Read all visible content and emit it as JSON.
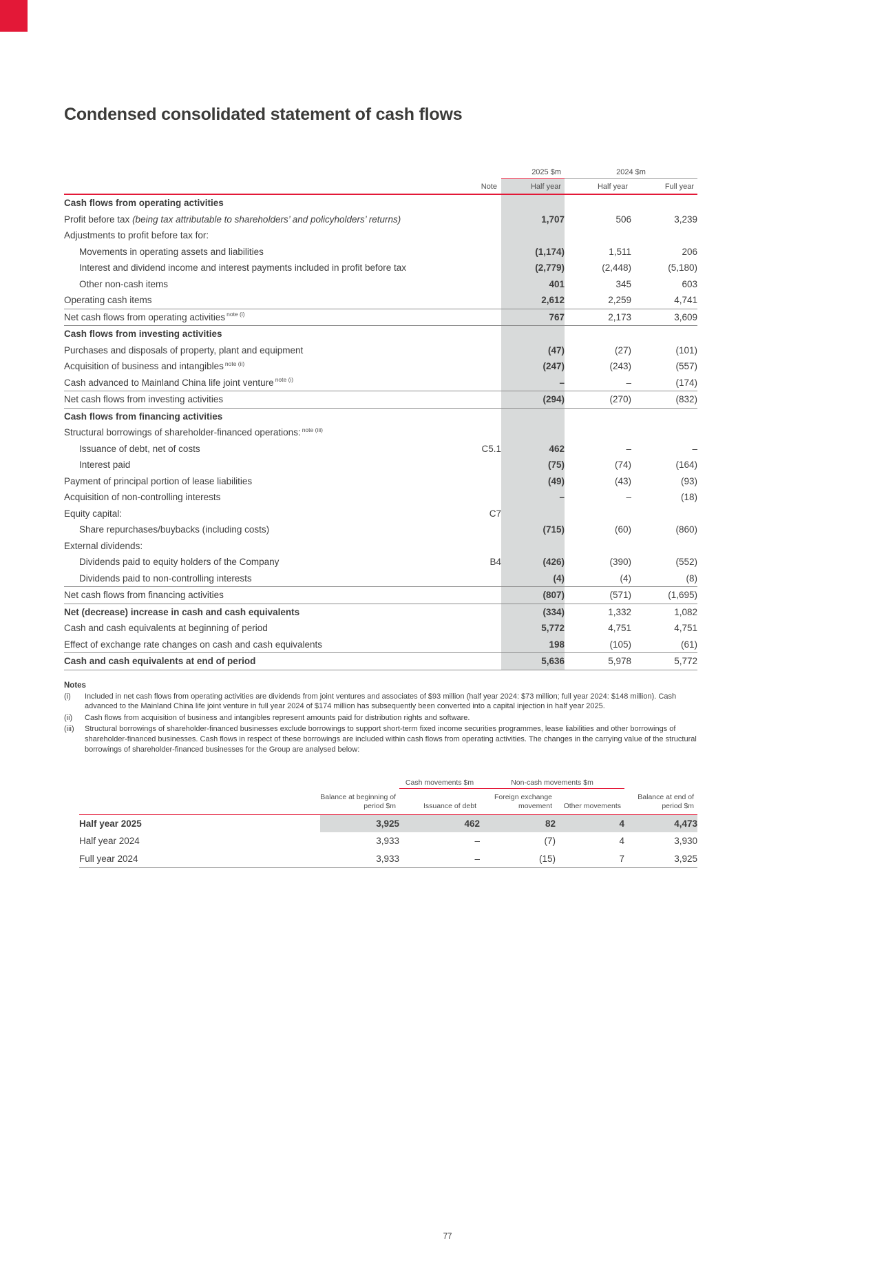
{
  "page": {
    "title": "Condensed consolidated statement of cash flows",
    "page_number": "77",
    "accent_red": "#E31837",
    "highlight_gray": "#D8DADA"
  },
  "cashflow_table": {
    "col_headers": {
      "group_2025": "2025 $m",
      "group_2024": "2024 $m",
      "note": "Note",
      "half_year_2025": "Half year",
      "half_year_2024": "Half year",
      "full_year_2024": "Full year"
    },
    "rows": [
      {
        "label": "Cash flows from operating activities",
        "style": "section"
      },
      {
        "label": "Profit before tax",
        "italic": "(being tax attributable to shareholders’ and policyholders’ returns)",
        "v25": "1,707",
        "v24h": "506",
        "v24f": "3,239"
      },
      {
        "label": "Adjustments to profit before tax for:"
      },
      {
        "label": "Movements in operating assets and liabilities",
        "indent": true,
        "v25": "(1,174)",
        "v24h": "1,511",
        "v24f": "206"
      },
      {
        "label": "Interest and dividend income and interest payments included in profit before tax",
        "indent": true,
        "v25": "(2,779)",
        "v24h": "(2,448)",
        "v24f": "(5,180)"
      },
      {
        "label": "Other non-cash items",
        "indent": true,
        "v25": "401",
        "v24h": "345",
        "v24f": "603"
      },
      {
        "label": "Operating cash items",
        "v25": "2,612",
        "v24h": "2,259",
        "v24f": "4,741"
      },
      {
        "label": "Net cash flows from operating activities",
        "sup": "note (i)",
        "v25": "767",
        "v24h": "2,173",
        "v24f": "3,609",
        "bt": true
      },
      {
        "label": "Cash flows from investing activities",
        "style": "section",
        "bt": true
      },
      {
        "label": "Purchases and disposals of property, plant and equipment",
        "v25": "(47)",
        "v24h": "(27)",
        "v24f": "(101)"
      },
      {
        "label": "Acquisition of business and intangibles",
        "sup": "note (ii)",
        "v25": "(247)",
        "v24h": "(243)",
        "v24f": "(557)"
      },
      {
        "label": "Cash advanced to Mainland China life joint venture",
        "sup": "note (i)",
        "v25": "–",
        "v24h": "–",
        "v24f": "(174)"
      },
      {
        "label": "Net cash flows from investing activities",
        "v25": "(294)",
        "v24h": "(270)",
        "v24f": "(832)",
        "bt": true
      },
      {
        "label": "Cash flows from financing activities",
        "style": "section",
        "bt": true
      },
      {
        "label": "Structural borrowings of shareholder-financed operations:",
        "sup": "note (iii)"
      },
      {
        "label": "Issuance of debt, net of costs",
        "indent": true,
        "note": "C5.1",
        "v25": "462",
        "v24h": "–",
        "v24f": "–"
      },
      {
        "label": "Interest paid",
        "indent": true,
        "v25": "(75)",
        "v24h": "(74)",
        "v24f": "(164)"
      },
      {
        "label": "Payment of principal portion of lease liabilities",
        "v25": "(49)",
        "v24h": "(43)",
        "v24f": "(93)"
      },
      {
        "label": "Acquisition of non-controlling interests",
        "v25": "–",
        "v24h": "–",
        "v24f": "(18)"
      },
      {
        "label": "Equity capital:",
        "note": "C7"
      },
      {
        "label": "Share repurchases/buybacks (including costs)",
        "indent": true,
        "v25": "(715)",
        "v24h": "(60)",
        "v24f": "(860)"
      },
      {
        "label": "External dividends:"
      },
      {
        "label": "Dividends paid to equity holders of the Company",
        "indent": true,
        "note": "B4",
        "v25": "(426)",
        "v24h": "(390)",
        "v24f": "(552)"
      },
      {
        "label": "Dividends paid to non-controlling interests",
        "indent": true,
        "v25": "(4)",
        "v24h": "(4)",
        "v24f": "(8)"
      },
      {
        "label": "Net cash flows from financing activities",
        "v25": "(807)",
        "v24h": "(571)",
        "v24f": "(1,695)",
        "bt": true
      },
      {
        "label": "Net (decrease) increase in cash and cash equivalents",
        "style": "bold",
        "v25": "(334)",
        "v24h": "1,332",
        "v24f": "1,082",
        "bt": true
      },
      {
        "label": "Cash and cash equivalents at beginning of period",
        "v25": "5,772",
        "v24h": "4,751",
        "v24f": "4,751"
      },
      {
        "label": "Effect of exchange rate changes on cash and cash equivalents",
        "v25": "198",
        "v24h": "(105)",
        "v24f": "(61)"
      },
      {
        "label": "Cash and cash equivalents at end of period",
        "style": "bold",
        "v25": "5,636",
        "v24h": "5,978",
        "v24f": "5,772",
        "bt": true
      }
    ]
  },
  "notes": {
    "heading": "Notes",
    "items": [
      {
        "marker": "(i)",
        "text": "Included in net cash flows from operating activities are dividends from joint ventures and associates of $93 million (half year 2024: $73 million; full year 2024: $148 million). Cash advanced to the Mainland China life joint venture in full year 2024 of $174 million has subsequently been converted into a capital injection in half year 2025."
      },
      {
        "marker": "(ii)",
        "text": "Cash flows from acquisition of business and intangibles represent amounts paid for distribution rights and software."
      },
      {
        "marker": "(iii)",
        "text": "Structural borrowings of shareholder-financed businesses exclude borrowings to support short-term fixed income securities programmes, lease liabilities and other borrowings of shareholder-financed businesses. Cash flows in respect of these borrowings are included within cash flows from operating activities. The changes in the carrying value of the structural borrowings of shareholder-financed businesses for the Group are analysed below:"
      }
    ]
  },
  "borrowings_table": {
    "group_headers": {
      "cash": "Cash movements $m",
      "noncash": "Non-cash movements $m"
    },
    "col_headers": [
      "Balance at beginning of period $m",
      "Issuance of debt",
      "Foreign exchange movement",
      "Other movements",
      "Balance at end of period $m"
    ],
    "rows": [
      {
        "label": "Half year 2025",
        "values": [
          "3,925",
          "462",
          "82",
          "4",
          "4,473"
        ],
        "highlight": true,
        "bold": true
      },
      {
        "label": "Half year 2024",
        "values": [
          "3,933",
          "–",
          "(7)",
          "4",
          "3,930"
        ]
      },
      {
        "label": "Full year 2024",
        "values": [
          "3,933",
          "–",
          "(15)",
          "7",
          "3,925"
        ]
      }
    ]
  }
}
